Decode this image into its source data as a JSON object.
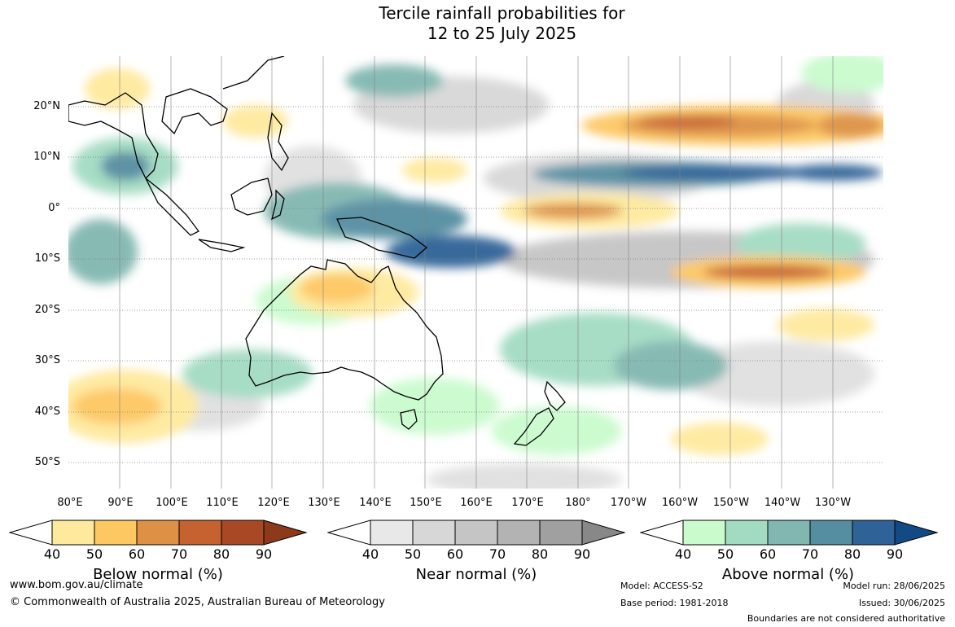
{
  "title": {
    "line1": "Tercile rainfall probabilities for",
    "line2": "12 to 25 July 2025"
  },
  "map": {
    "lat_labels": [
      "20°N",
      "10°N",
      "0°",
      "10°S",
      "20°S",
      "30°S",
      "40°S",
      "50°S"
    ],
    "lon_labels": [
      "80°E",
      "90°E",
      "100°E",
      "110°E",
      "120°E",
      "130°E",
      "140°E",
      "150°E",
      "160°E",
      "170°E",
      "180°",
      "170°W",
      "160°W",
      "150°W",
      "140°W",
      "130°W"
    ]
  },
  "legends": [
    {
      "label": "Below normal (%)",
      "ticks": [
        "40",
        "50",
        "60",
        "70",
        "80",
        "90"
      ],
      "colors": [
        "#ffffff",
        "#fee99c",
        "#fdc762",
        "#de9144",
        "#c6622f",
        "#a84824",
        "#8c3a1a"
      ]
    },
    {
      "label": "Near normal (%)",
      "ticks": [
        "40",
        "50",
        "60",
        "70",
        "80",
        "90"
      ],
      "colors": [
        "#ffffff",
        "#e8e8e8",
        "#d7d7d7",
        "#c5c5c5",
        "#b3b3b3",
        "#a0a0a0",
        "#888888"
      ]
    },
    {
      "label": "Above normal (%)",
      "ticks": [
        "40",
        "50",
        "60",
        "70",
        "80",
        "90"
      ],
      "colors": [
        "#ffffff",
        "#c9fbcd",
        "#a3dbc2",
        "#82b7b1",
        "#558ea1",
        "#2f6296",
        "#124a86"
      ]
    }
  ],
  "footer": {
    "url": "www.bom.gov.au/climate",
    "copyright": "© Commonwealth of Australia 2025, Australian Bureau of Meteorology",
    "model": "Model: ACCESS-S2",
    "base_period": "Base period: 1981-2018",
    "model_run": "Model run: 28/06/2025",
    "issued": "Issued: 30/06/2025",
    "disclaimer": "Boundaries are not considered authoritative"
  }
}
